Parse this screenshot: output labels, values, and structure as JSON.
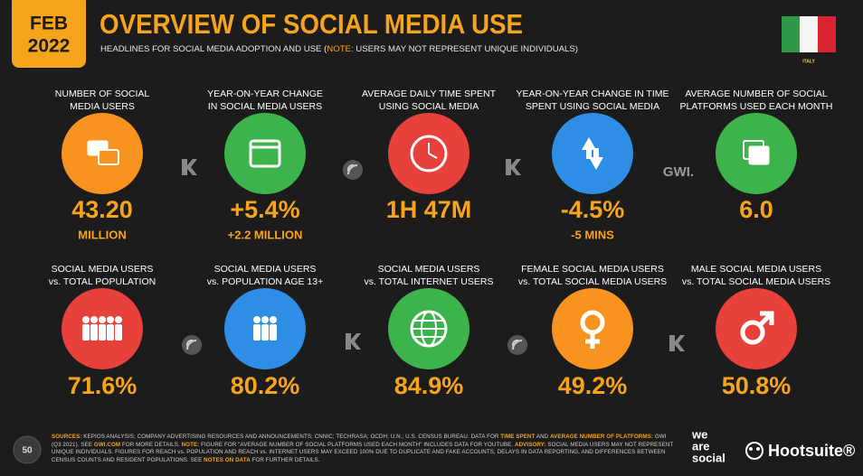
{
  "header": {
    "month": "FEB",
    "year": "2022",
    "title": "OVERVIEW OF SOCIAL MEDIA USE",
    "subtitle": [
      "HEADLINES FOR SOCIAL MEDIA ADOPTION AND USE (",
      "NOTE:",
      " USERS MAY NOT REPRESENT UNIQUE INDIVIDUALS)"
    ],
    "country": "ITALY"
  },
  "tiles": [
    {
      "label": [
        "NUMBER OF SOCIAL",
        "MEDIA USERS"
      ],
      "value": "43.20",
      "sub": "MILLION"
    },
    {
      "label": [
        "YEAR-ON-YEAR CHANGE",
        "IN SOCIAL MEDIA USERS"
      ],
      "value": "+5.4%",
      "sub": "+2.2 MILLION"
    },
    {
      "label": [
        "AVERAGE DAILY TIME SPENT",
        "USING SOCIAL MEDIA"
      ],
      "value": "1H 47M"
    },
    {
      "label": [
        "YEAR-ON-YEAR CHANGE IN TIME",
        "SPENT USING SOCIAL MEDIA"
      ],
      "value": "-4.5%",
      "sub": "-5 MINS"
    },
    {
      "label": [
        "AVERAGE NUMBER OF SOCIAL",
        "PLATFORMS USED EACH MONTH"
      ],
      "value": "6.0"
    },
    {
      "label": [
        "SOCIAL MEDIA USERS",
        "vs. TOTAL POPULATION"
      ],
      "value": "71.6%"
    },
    {
      "label": [
        "SOCIAL MEDIA USERS",
        "vs. POPULATION AGE 13+"
      ],
      "value": "80.2%"
    },
    {
      "label": [
        "SOCIAL MEDIA USERS",
        "vs. TOTAL INTERNET USERS"
      ],
      "value": "84.9%"
    },
    {
      "label": [
        "FEMALE SOCIAL MEDIA USERS",
        "vs. TOTAL SOCIAL MEDIA USERS"
      ],
      "value": "49.2%"
    },
    {
      "label": [
        "MALE SOCIAL MEDIA USERS",
        "vs. TOTAL SOCIAL MEDIA USERS"
      ],
      "value": "50.8%"
    }
  ],
  "partner": "GWI.",
  "footer": {
    "page": "50",
    "sources": [
      {
        "text": "SOURCES:",
        "highlight": true
      },
      {
        "text": " KEPIOS ANALYSIS; COMPANY ADVERTISING RESOURCES AND ANNOUNCEMENTS; CNNIC; TECHRASA; OCDH; U.N.; U.S. CENSUS BUREAU. DATA FOR ",
        "highlight": false
      },
      {
        "text": "TIME SPENT",
        "highlight": true
      },
      {
        "text": " AND ",
        "highlight": false
      },
      {
        "text": "AVERAGE NUMBER OF PLATFORMS:",
        "highlight": true
      },
      {
        "text": " GWI (Q3 2021). SEE ",
        "highlight": false
      },
      {
        "text": "GWI.COM",
        "highlight": true
      },
      {
        "text": " FOR MORE DETAILS. ",
        "highlight": false
      },
      {
        "text": "NOTE:",
        "highlight": true
      },
      {
        "text": " FIGURE FOR \"AVERAGE NUMBER OF SOCIAL PLATFORMS USED EACH MONTH\" INCLUDES DATA FOR YOUTUBE. ",
        "highlight": false
      },
      {
        "text": "ADVISORY:",
        "highlight": true
      },
      {
        "text": " SOCIAL MEDIA USERS MAY NOT REPRESENT UNIQUE INDIVIDUALS. FIGURES FOR REACH vs. POPULATION AND REACH vs. INTERNET USERS MAY EXCEED 100% DUE TO DUPLICATE AND FAKE ACCOUNTS, DELAYS IN DATA REPORTING, AND DIFFERENCES BETWEEN CENSUS COUNTS AND RESIDENT POPULATIONS. SEE ",
        "highlight": false
      },
      {
        "text": "NOTES ON DATA",
        "highlight": true
      },
      {
        "text": " FOR FURTHER DETAILS.",
        "highlight": false
      }
    ],
    "brand_lines": [
      "we",
      "are",
      "social"
    ],
    "brand2": "Hootsuite®"
  }
}
